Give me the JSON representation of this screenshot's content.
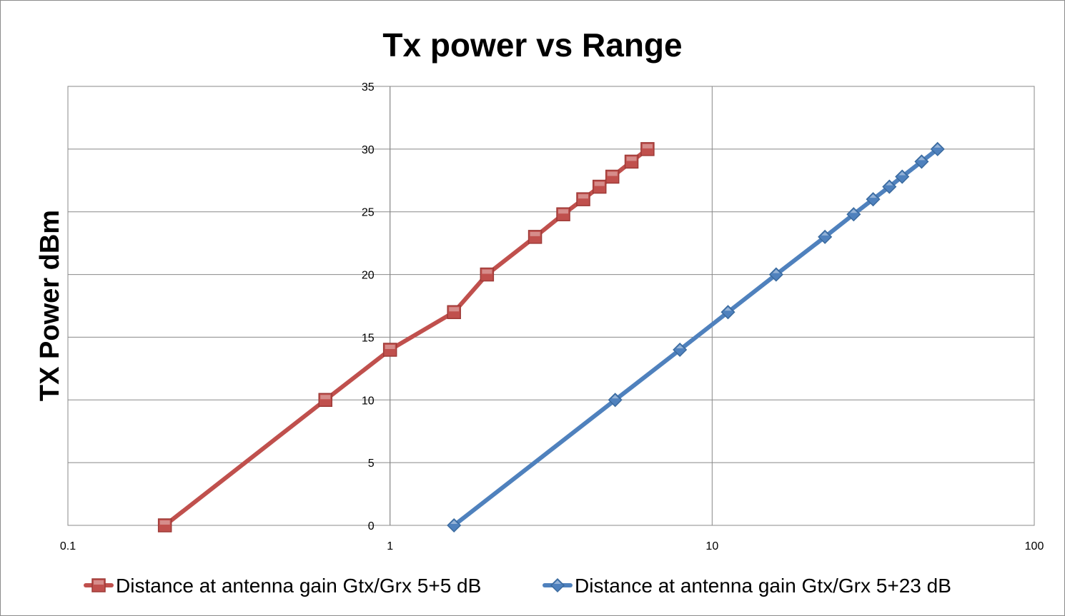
{
  "chart_data": {
    "type": "line",
    "title": "Tx power vs Range",
    "xlabel": "",
    "ylabel": "TX Power dBm",
    "x_scale": "log",
    "xlim": [
      0.1,
      100
    ],
    "ylim": [
      0,
      35
    ],
    "x_ticks": [
      "0.1",
      "1",
      "10",
      "100"
    ],
    "y_ticks": [
      "0",
      "5",
      "10",
      "15",
      "20",
      "25",
      "30",
      "35"
    ],
    "grid": true,
    "legend_position": "bottom",
    "series": [
      {
        "name": "Distance at antenna gain Gtx/Grx 5+5 dB",
        "color": "#c0504d",
        "marker": "square",
        "points": [
          {
            "x": 0.2,
            "y": 0
          },
          {
            "x": 0.63,
            "y": 10
          },
          {
            "x": 1.0,
            "y": 14
          },
          {
            "x": 1.58,
            "y": 17
          },
          {
            "x": 2.0,
            "y": 20
          },
          {
            "x": 2.82,
            "y": 23
          },
          {
            "x": 3.45,
            "y": 24.8
          },
          {
            "x": 3.98,
            "y": 26
          },
          {
            "x": 4.47,
            "y": 27
          },
          {
            "x": 4.9,
            "y": 27.8
          },
          {
            "x": 5.62,
            "y": 29
          },
          {
            "x": 6.3,
            "y": 30
          }
        ]
      },
      {
        "name": "Distance at antenna gain Gtx/Grx 5+23 dB",
        "color": "#4f81bd",
        "marker": "diamond",
        "points": [
          {
            "x": 1.58,
            "y": 0
          },
          {
            "x": 5.0,
            "y": 10
          },
          {
            "x": 7.94,
            "y": 14
          },
          {
            "x": 11.2,
            "y": 17
          },
          {
            "x": 15.8,
            "y": 20
          },
          {
            "x": 22.4,
            "y": 23
          },
          {
            "x": 27.5,
            "y": 24.8
          },
          {
            "x": 31.6,
            "y": 26
          },
          {
            "x": 35.5,
            "y": 27
          },
          {
            "x": 38.9,
            "y": 27.8
          },
          {
            "x": 44.7,
            "y": 29
          },
          {
            "x": 50.1,
            "y": 30
          }
        ]
      }
    ]
  }
}
